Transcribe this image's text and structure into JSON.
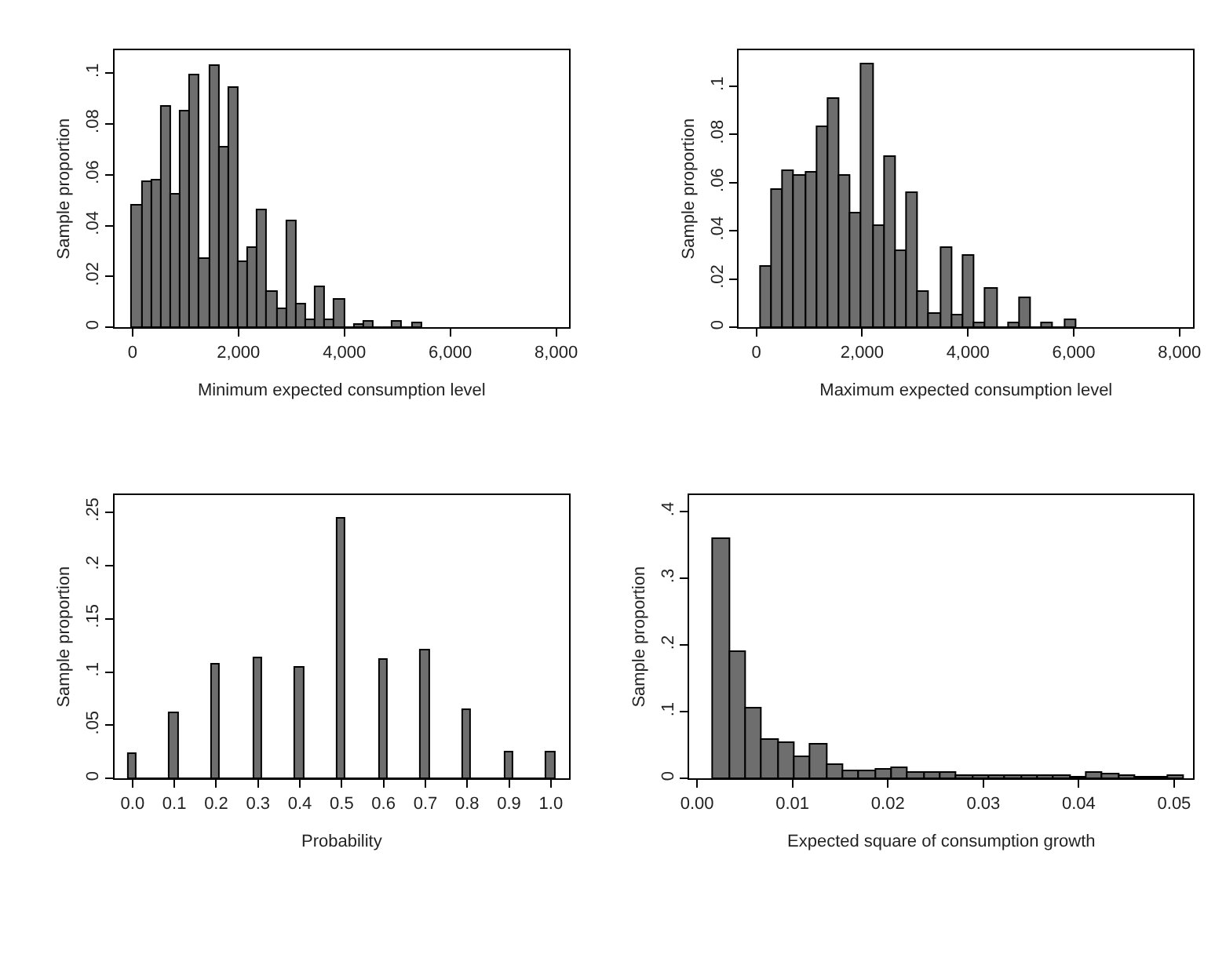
{
  "chart_data": [
    {
      "type": "histogram",
      "xlabel": "Minimum expected consumption level",
      "ylabel": "Sample proportion",
      "color": "#6e6e6e",
      "bins": [
        0,
        182,
        364,
        546,
        728,
        910,
        1092,
        1274,
        1456,
        1638,
        1820,
        2002,
        2184,
        2366,
        2548,
        2730,
        2912,
        3094,
        3276,
        3458,
        3640,
        3822,
        4004,
        4186,
        4368,
        4550,
        4732,
        4914,
        5096,
        5278,
        5460
      ],
      "values": [
        0.048,
        0.057,
        0.058,
        0.087,
        0.052,
        0.085,
        0.099,
        0.027,
        0.103,
        0.071,
        0.094,
        0.026,
        0.031,
        0.046,
        0.014,
        0.007,
        0.042,
        0.009,
        0.003,
        0.016,
        0.003,
        0.011,
        0,
        0.001,
        0.002,
        0,
        0,
        0.002,
        0,
        0.0015
      ],
      "xlim": [
        -340,
        8240
      ],
      "ylim": [
        0,
        0.109
      ],
      "xticks": [
        0,
        {
          "value": 2000,
          "label": "2,000"
        },
        {
          "value": 4000,
          "label": "4,000"
        },
        {
          "value": 6000,
          "label": "6,000"
        },
        {
          "value": 8000,
          "label": "8,000"
        }
      ],
      "yticks": [
        0,
        {
          "value": 0.02,
          "label": ".02"
        },
        {
          "value": 0.04,
          "label": ".04"
        },
        {
          "value": 0.06,
          "label": ".06"
        },
        {
          "value": 0.08,
          "label": ".08"
        },
        {
          "value": 0.1,
          "label": ".1"
        }
      ]
    },
    {
      "type": "histogram",
      "xlabel": "Maximum expected consumption level",
      "ylabel": "Sample proportion",
      "color": "#6e6e6e",
      "bins": [
        80,
        293,
        506,
        719,
        932,
        1145,
        1358,
        1571,
        1784,
        1997,
        2210,
        2423,
        2636,
        2849,
        3062,
        3275,
        3488,
        3701,
        3914,
        4127,
        4340,
        4553,
        4766,
        4979,
        5192,
        5405,
        5618,
        5831,
        6044
      ],
      "values": [
        0.025,
        0.057,
        0.065,
        0.063,
        0.064,
        0.083,
        0.095,
        0.063,
        0.047,
        0.109,
        0.042,
        0.071,
        0.032,
        0.056,
        0.015,
        0.006,
        0.033,
        0.005,
        0.03,
        0.002,
        0.016,
        0,
        0.002,
        0.012,
        0,
        0.0015,
        0,
        0.003
      ],
      "xlim": [
        -330,
        8260
      ],
      "ylim": [
        0,
        0.115
      ],
      "xticks": [
        0,
        {
          "value": 2000,
          "label": "2,000"
        },
        {
          "value": 4000,
          "label": "4,000"
        },
        {
          "value": 6000,
          "label": "6,000"
        },
        {
          "value": 8000,
          "label": "8,000"
        }
      ],
      "yticks": [
        0,
        {
          "value": 0.02,
          "label": ".02"
        },
        {
          "value": 0.04,
          "label": ".04"
        },
        {
          "value": 0.06,
          "label": ".06"
        },
        {
          "value": 0.08,
          "label": ".08"
        },
        {
          "value": 0.1,
          "label": ".1"
        }
      ]
    },
    {
      "type": "histogram",
      "xlabel": "Probability",
      "ylabel": "Sample proportion",
      "color": "#6e6e6e",
      "bins": [
        -0.01,
        0.01,
        0.09,
        0.11,
        0.19,
        0.21,
        0.29,
        0.31,
        0.39,
        0.41,
        0.49,
        0.51,
        0.59,
        0.61,
        0.69,
        0.71,
        0.79,
        0.81,
        0.89,
        0.91,
        0.99,
        1.01
      ],
      "values": [
        0.023,
        0,
        0.061,
        0,
        0.107,
        0,
        0.113,
        0,
        0.104,
        0,
        0.244,
        0,
        0.112,
        0,
        0.121,
        0,
        0.065,
        0,
        0.024,
        0,
        0.024
      ],
      "xlim": [
        -0.043,
        1.043
      ],
      "ylim": [
        0,
        0.266
      ],
      "xticks": [
        {
          "value": 0,
          "label": "0.0"
        },
        0.1,
        0.2,
        0.3,
        0.4,
        0.5,
        0.6,
        0.7,
        0.8,
        0.9,
        {
          "value": 1,
          "label": "1.0"
        }
      ],
      "yticks": [
        0,
        {
          "value": 0.05,
          "label": ".05"
        },
        {
          "value": 0.1,
          "label": ".1"
        },
        {
          "value": 0.15,
          "label": ".15"
        },
        {
          "value": 0.2,
          "label": ".2"
        },
        {
          "value": 0.25,
          "label": ".25"
        }
      ]
    },
    {
      "type": "histogram",
      "xlabel": "Expected square of consumption growth",
      "ylabel": "Sample proportion",
      "color": "#6e6e6e",
      "bins": [
        0.0017,
        0.0034,
        0.0051,
        0.0068,
        0.0085,
        0.0102,
        0.0119,
        0.0136,
        0.0153,
        0.017,
        0.0187,
        0.0204,
        0.0221,
        0.0238,
        0.0255,
        0.0272,
        0.0289,
        0.0306,
        0.0323,
        0.034,
        0.0357,
        0.0374,
        0.0391,
        0.0408,
        0.0425,
        0.0442,
        0.0459,
        0.0476,
        0.0493,
        0.051
      ],
      "values": [
        0.36,
        0.19,
        0.105,
        0.058,
        0.054,
        0.033,
        0.052,
        0.021,
        0.011,
        0.011,
        0.013,
        0.016,
        0.008,
        0.008,
        0.008,
        0.005,
        0.003,
        0.004,
        0.003,
        0.003,
        0.004,
        0.003,
        0.002,
        0.009,
        0.006,
        0.004,
        0.002,
        0.001,
        0.004
      ],
      "xlim": [
        -0.0008,
        0.052
      ],
      "ylim": [
        0,
        0.425
      ],
      "xticks": [
        {
          "value": 0,
          "label": "0.00"
        },
        0.01,
        0.02,
        0.03,
        0.04,
        0.05
      ],
      "yticks": [
        0,
        {
          "value": 0.1,
          "label": ".1"
        },
        {
          "value": 0.2,
          "label": ".2"
        },
        {
          "value": 0.3,
          "label": ".3"
        },
        {
          "value": 0.4,
          "label": ".4"
        }
      ]
    }
  ]
}
